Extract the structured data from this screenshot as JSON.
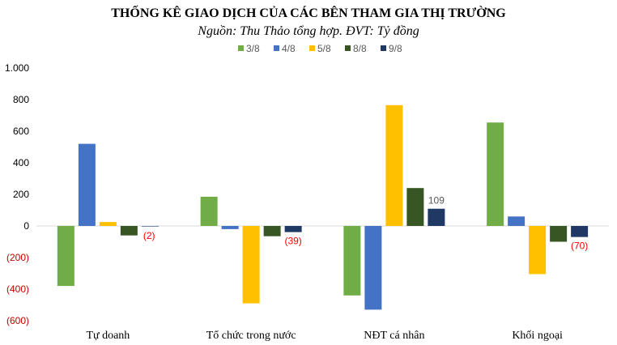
{
  "chart_data": {
    "type": "bar",
    "title": "THỐNG KÊ GIAO DỊCH CỦA CÁC BÊN THAM GIA THỊ TRƯỜNG",
    "subtitle": "Nguồn: Thu Thảo tổng hợp. ĐVT: Tỷ đồng",
    "categories": [
      "Tự doanh",
      "Tổ chức trong nước",
      "NĐT cá nhân",
      "Khối ngoại"
    ],
    "series": [
      {
        "name": "3/8",
        "color": "#70AD47",
        "values": [
          -380,
          185,
          -440,
          655
        ]
      },
      {
        "name": "4/8",
        "color": "#4472C4",
        "values": [
          520,
          -20,
          -530,
          60
        ]
      },
      {
        "name": "5/8",
        "color": "#FFC000",
        "values": [
          25,
          -490,
          765,
          -305
        ]
      },
      {
        "name": "8/8",
        "color": "#375623",
        "values": [
          -60,
          -65,
          240,
          -100
        ]
      },
      {
        "name": "9/8",
        "color": "#203864",
        "values": [
          -2,
          -39,
          109,
          -70
        ]
      }
    ],
    "data_labels": [
      {
        "series": 4,
        "category": 0,
        "text": "(2)",
        "color": "#FF0000"
      },
      {
        "series": 4,
        "category": 1,
        "text": "(39)",
        "color": "#FF0000"
      },
      {
        "series": 4,
        "category": 2,
        "text": "109",
        "color": "#595959"
      },
      {
        "series": 4,
        "category": 3,
        "text": "(70)",
        "color": "#FF0000"
      }
    ],
    "ylim": [
      -600,
      1000
    ],
    "yticks": [
      1000,
      800,
      600,
      400,
      200,
      0,
      -200,
      -400,
      -600
    ],
    "ytick_labels": [
      "1.000",
      "800",
      "600",
      "400",
      "200",
      "0",
      "(200)",
      "(400)",
      "(600)"
    ],
    "ytick_colors": {
      "positive": "#000000",
      "negative": "#C00000"
    },
    "legend_position": "top",
    "grid": false
  }
}
